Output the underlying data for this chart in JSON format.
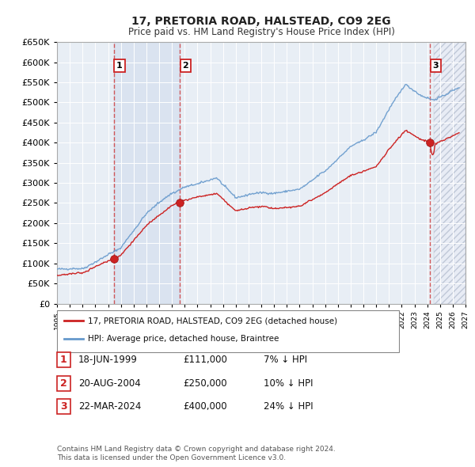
{
  "title": "17, PRETORIA ROAD, HALSTEAD, CO9 2EG",
  "subtitle": "Price paid vs. HM Land Registry's House Price Index (HPI)",
  "ytick_values": [
    0,
    50000,
    100000,
    150000,
    200000,
    250000,
    300000,
    350000,
    400000,
    450000,
    500000,
    550000,
    600000,
    650000
  ],
  "xlim_start": 1995.0,
  "xlim_end": 2027.0,
  "ylim_min": 0,
  "ylim_max": 650000,
  "background_color": "#ffffff",
  "plot_bg_color": "#e8eef5",
  "grid_color": "#ccccdd",
  "hpi_line_color": "#6699cc",
  "price_line_color": "#cc2222",
  "sale_marker_color": "#cc2222",
  "legend_label_price": "17, PRETORIA ROAD, HALSTEAD, CO9 2EG (detached house)",
  "legend_label_hpi": "HPI: Average price, detached house, Braintree",
  "sale1_date": 1999.46,
  "sale1_price": 111000,
  "sale1_label": "1",
  "sale1_date_str": "18-JUN-1999",
  "sale1_price_str": "£111,000",
  "sale1_hpi_str": "7% ↓ HPI",
  "sale2_date": 2004.63,
  "sale2_price": 250000,
  "sale2_label": "2",
  "sale2_date_str": "20-AUG-2004",
  "sale2_price_str": "£250,000",
  "sale2_hpi_str": "10% ↓ HPI",
  "sale3_date": 2024.22,
  "sale3_price": 400000,
  "sale3_label": "3",
  "sale3_date_str": "22-MAR-2024",
  "sale3_price_str": "£400,000",
  "sale3_hpi_str": "24% ↓ HPI",
  "footnote": "Contains HM Land Registry data © Crown copyright and database right 2024.\nThis data is licensed under the Open Government Licence v3.0.",
  "xtick_years": [
    1995,
    1996,
    1997,
    1998,
    1999,
    2000,
    2001,
    2002,
    2003,
    2004,
    2005,
    2006,
    2007,
    2008,
    2009,
    2010,
    2011,
    2012,
    2013,
    2014,
    2015,
    2016,
    2017,
    2018,
    2019,
    2020,
    2021,
    2022,
    2023,
    2024,
    2025,
    2026,
    2027
  ]
}
